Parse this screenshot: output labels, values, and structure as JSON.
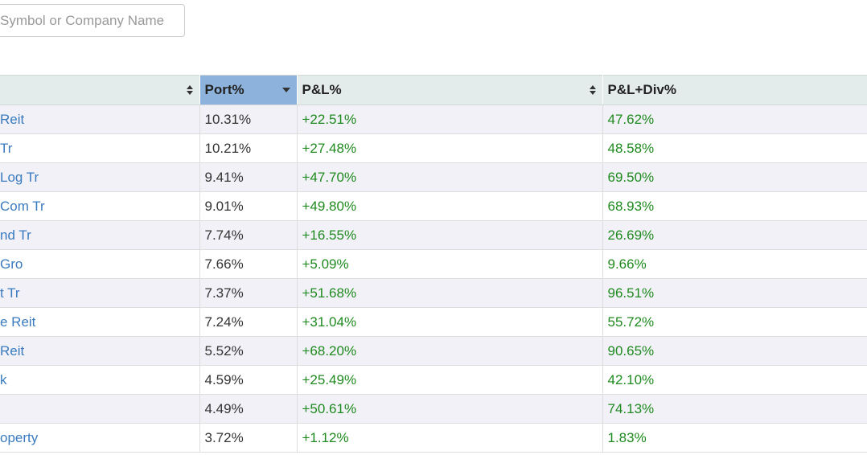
{
  "search": {
    "placeholder": "Symbol or Company Name"
  },
  "table": {
    "headers": {
      "name": "",
      "port": "Port%",
      "pl": "P&L%",
      "pldiv": "P&L+Div%"
    },
    "sort_column": "Port%",
    "sort_direction": "descending",
    "rows": [
      {
        "name": "Reit",
        "port": "10.31%",
        "pl": "+22.51%",
        "pldiv": "47.62%"
      },
      {
        "name": " Tr",
        "port": "10.21%",
        "pl": "+27.48%",
        "pldiv": "48.58%"
      },
      {
        "name": "Log Tr",
        "port": "9.41%",
        "pl": "+47.70%",
        "pldiv": "69.50%"
      },
      {
        "name": "Com Tr",
        "port": "9.01%",
        "pl": "+49.80%",
        "pldiv": "68.93%"
      },
      {
        "name": "nd Tr",
        "port": "7.74%",
        "pl": "+16.55%",
        "pldiv": "26.69%"
      },
      {
        "name": "Gro",
        "port": "7.66%",
        "pl": "+5.09%",
        "pldiv": "9.66%"
      },
      {
        "name": "t Tr",
        "port": "7.37%",
        "pl": "+51.68%",
        "pldiv": "96.51%"
      },
      {
        "name": "e Reit",
        "port": "7.24%",
        "pl": "+31.04%",
        "pldiv": "55.72%"
      },
      {
        "name": "Reit",
        "port": "5.52%",
        "pl": "+68.20%",
        "pldiv": "90.65%"
      },
      {
        "name": "k",
        "port": "4.59%",
        "pl": "+25.49%",
        "pldiv": "42.10%"
      },
      {
        "name": "",
        "port": "4.49%",
        "pl": "+50.61%",
        "pldiv": "74.13%"
      },
      {
        "name": "operty",
        "port": "3.72%",
        "pl": "+1.12%",
        "pldiv": "1.83%"
      }
    ]
  },
  "colors": {
    "header_bg": "#e4eceb",
    "sorted_header_bg": "#8db3dc",
    "name_link": "#3a7bbf",
    "gain_green": "#1f8a1f",
    "row_alt": "#f1f1f7"
  },
  "icons": {
    "sort_both": "sort-both-icon",
    "sort_desc": "caret-down-icon"
  }
}
